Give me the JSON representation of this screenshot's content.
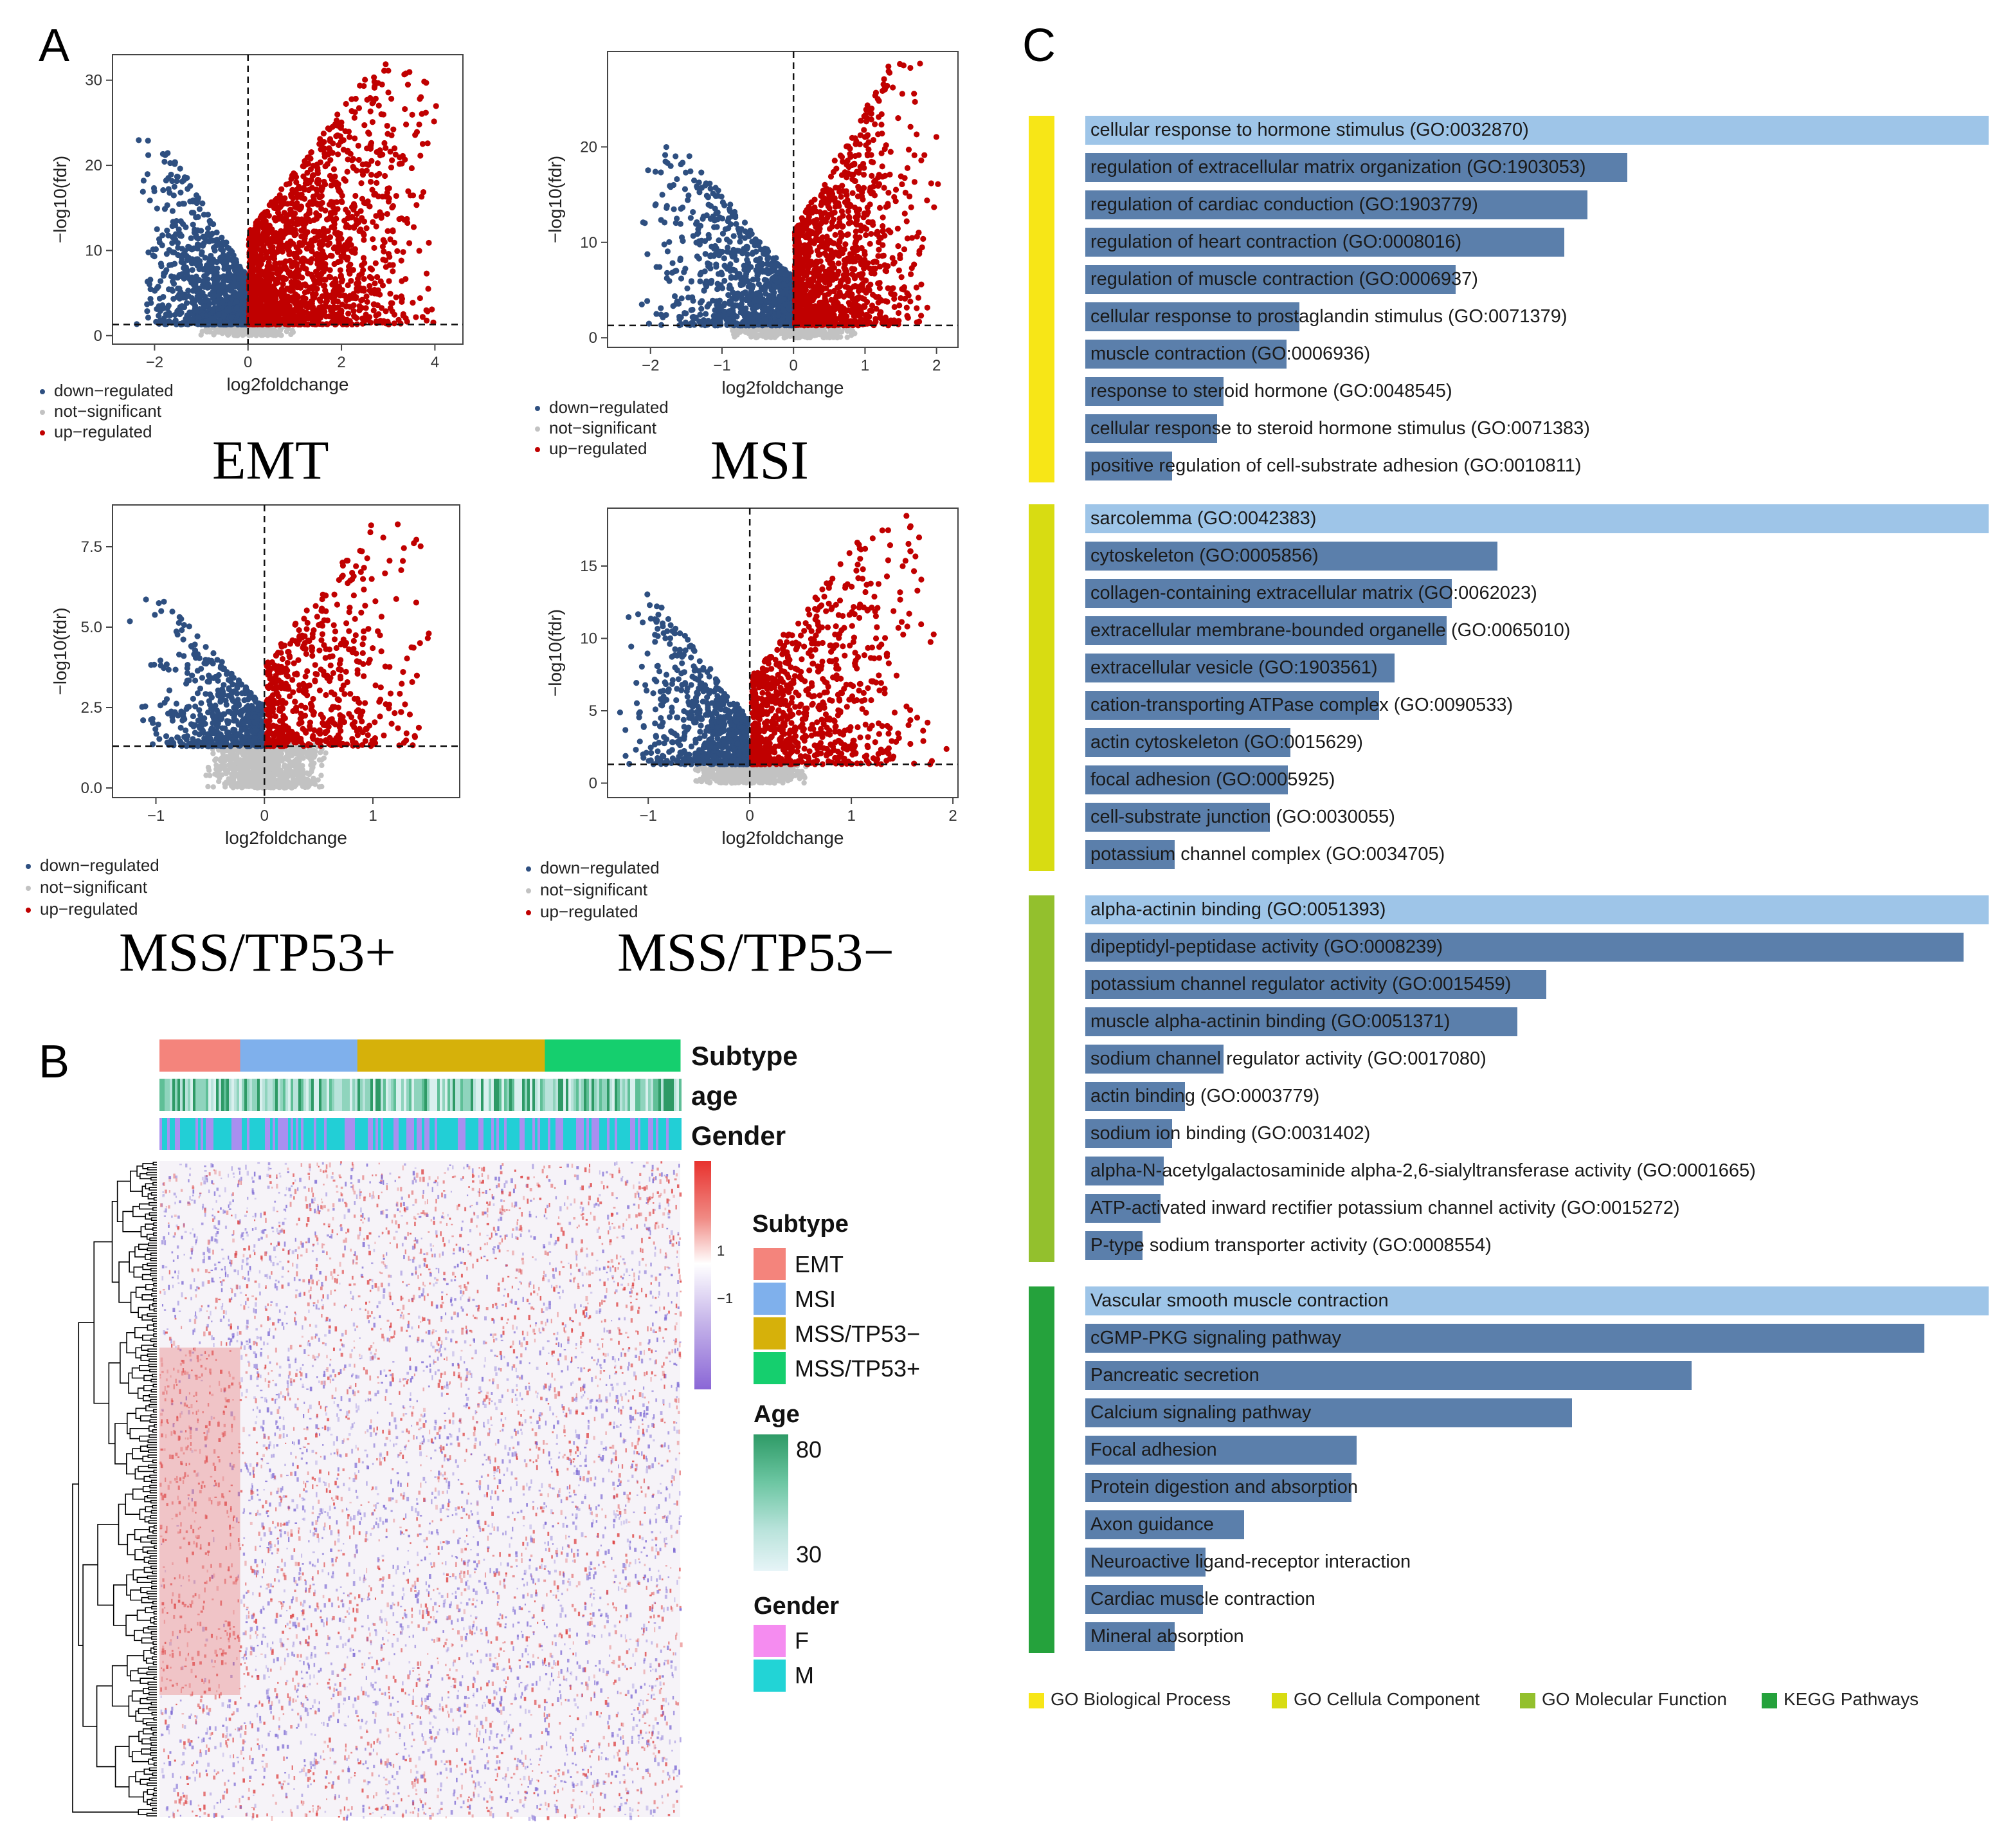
{
  "panels": {
    "a": "A",
    "b": "B",
    "c": "C"
  },
  "colors": {
    "down": "#2e4f80",
    "notsig": "#c2c2c2",
    "up": "#c00000",
    "bar_light": "#9ec5e8",
    "bar_dark": "#5b7fab",
    "bp": "#f7e617",
    "cc": "#d8dc12",
    "mf": "#93c02d",
    "kegg": "#25a23c"
  },
  "volcano_legend": [
    "down−regulated",
    "not−significant",
    "up−regulated"
  ],
  "volcanoes": [
    {
      "title": "EMT",
      "xlabel": "log2foldchange",
      "ylabel": "−log10(fdr)",
      "xlim": [
        -2.9,
        4.6
      ],
      "ylim": [
        -1,
        33
      ],
      "xticks": [
        -2,
        0,
        2,
        4
      ],
      "yticks": [
        0,
        10,
        20,
        30
      ],
      "xticklabels": [
        "−2",
        "0",
        "2",
        "4"
      ],
      "yticklabels": [
        "0",
        "10",
        "20",
        "30"
      ],
      "hline": 1.3,
      "down_n": 950,
      "up_n": 1700,
      "ns_n": 300,
      "down_xmin": -2.4,
      "up_xmax": 4.2,
      "ymax": 32,
      "seed": 11
    },
    {
      "title": "MSI",
      "xlabel": "log2foldchange",
      "ylabel": "−log10(fdr)",
      "xlim": [
        -2.6,
        2.3
      ],
      "ylim": [
        -1,
        30
      ],
      "xticks": [
        -2,
        -1,
        0,
        1,
        2
      ],
      "yticks": [
        0,
        10,
        20
      ],
      "xticklabels": [
        "−2",
        "−1",
        "0",
        "1",
        "2"
      ],
      "yticklabels": [
        "0",
        "10",
        "20"
      ],
      "hline": 1.3,
      "down_n": 1000,
      "up_n": 1200,
      "ns_n": 350,
      "down_xmin": -2.2,
      "up_xmax": 2.1,
      "ymax": 29,
      "seed": 23
    },
    {
      "title": "MSS/TP53+",
      "xlabel": "log2foldchange",
      "ylabel": "−log10(fdr)",
      "xlim": [
        -1.4,
        1.8
      ],
      "ylim": [
        -0.3,
        8.8
      ],
      "xticks": [
        -1,
        0,
        1
      ],
      "yticks": [
        0,
        2.5,
        5,
        7.5
      ],
      "xticklabels": [
        "−1",
        "0",
        "1"
      ],
      "yticklabels": [
        "0.0",
        "2.5",
        "5.0",
        "7.5"
      ],
      "hline": 1.3,
      "down_n": 550,
      "up_n": 550,
      "ns_n": 800,
      "down_xmin": -1.3,
      "up_xmax": 1.6,
      "ymax": 8.5,
      "seed": 37
    },
    {
      "title": "MSS/TP53−",
      "xlabel": "log2foldchange",
      "ylabel": "−log10(fdr)",
      "xlim": [
        -1.4,
        2.05
      ],
      "ylim": [
        -1,
        19
      ],
      "xticks": [
        -1,
        0,
        1,
        2
      ],
      "yticks": [
        0,
        5,
        10,
        15
      ],
      "xticklabels": [
        "−1",
        "0",
        "1",
        "2"
      ],
      "yticklabels": [
        "0",
        "5",
        "10",
        "15"
      ],
      "hline": 1.3,
      "down_n": 700,
      "up_n": 850,
      "ns_n": 600,
      "down_xmin": -1.3,
      "up_xmax": 1.95,
      "ymax": 18.5,
      "seed": 51
    }
  ],
  "heatmap": {
    "annotations": [
      "Subtype",
      "age",
      "Gender"
    ],
    "subtype_colors": [
      "#f4847c",
      "#7fb0ec",
      "#d6b10a",
      "#15cf6e"
    ],
    "subtype_fractions": [
      0.155,
      0.225,
      0.36,
      0.26
    ],
    "scale_labels": [
      "1",
      "−1"
    ],
    "legend": {
      "subtype_title": "Subtype",
      "subtypes": [
        "EMT",
        "MSI",
        "MSS/TP53−",
        "MSS/TP53+"
      ],
      "age_title": "Age",
      "age_labels": [
        "80",
        "30"
      ],
      "gender_title": "Gender",
      "genders": [
        "F",
        "M"
      ],
      "gender_colors": [
        "#f58cf0",
        "#22d4d6"
      ]
    }
  },
  "chart_data": {
    "type": "bar",
    "title": "",
    "orientation": "horizontal",
    "note": "Relative enrichment bar length (longest term in each category = 1.0)",
    "categories_legend": [
      "GO Biological Process",
      "GO Cellula Component",
      "GO Molecular Function",
      "KEGG Pathways"
    ],
    "groups": [
      {
        "name": "GO Biological Process",
        "terms": [
          {
            "label": "cellular response to hormone stimulus (GO:0032870)",
            "value": 1.0
          },
          {
            "label": "regulation of extracellular matrix organization (GO:1903053)",
            "value": 0.6
          },
          {
            "label": "regulation of cardiac conduction (GO:1903779)",
            "value": 0.556
          },
          {
            "label": "regulation of heart contraction (GO:0008016)",
            "value": 0.53
          },
          {
            "label": "regulation of muscle contraction (GO:0006937)",
            "value": 0.41
          },
          {
            "label": "cellular response to prostaglandin stimulus (GO:0071379)",
            "value": 0.237
          },
          {
            "label": "muscle contraction (GO:0006936)",
            "value": 0.223
          },
          {
            "label": "response to steroid hormone (GO:0048545)",
            "value": 0.153
          },
          {
            "label": "cellular response to steroid hormone stimulus (GO:0071383)",
            "value": 0.146
          },
          {
            "label": "positive regulation of cell-substrate adhesion (GO:0010811)",
            "value": 0.096
          }
        ]
      },
      {
        "name": "GO Cellula Component",
        "terms": [
          {
            "label": "sarcolemma (GO:0042383)",
            "value": 1.0
          },
          {
            "label": "cytoskeleton (GO:0005856)",
            "value": 0.456
          },
          {
            "label": "collagen-containing extracellular matrix (GO:0062023)",
            "value": 0.406
          },
          {
            "label": "extracellular membrane-bounded organelle (GO:0065010)",
            "value": 0.4
          },
          {
            "label": "extracellular vesicle (GO:1903561)",
            "value": 0.342
          },
          {
            "label": "cation-transporting ATPase complex (GO:0090533)",
            "value": 0.325
          },
          {
            "label": "actin cytoskeleton (GO:0015629)",
            "value": 0.227
          },
          {
            "label": "focal adhesion (GO:0005925)",
            "value": 0.224
          },
          {
            "label": "cell-substrate junction (GO:0030055)",
            "value": 0.204
          },
          {
            "label": "potassium channel complex (GO:0034705)",
            "value": 0.099
          }
        ]
      },
      {
        "name": "GO Molecular Function",
        "terms": [
          {
            "label": "alpha-actinin binding (GO:0051393)",
            "value": 1.0
          },
          {
            "label": "dipeptidyl-peptidase activity (GO:0008239)",
            "value": 0.972
          },
          {
            "label": "potassium channel regulator activity (GO:0015459)",
            "value": 0.51
          },
          {
            "label": "muscle alpha-actinin binding (GO:0051371)",
            "value": 0.478
          },
          {
            "label": "sodium channel regulator activity (GO:0017080)",
            "value": 0.153
          },
          {
            "label": "actin binding (GO:0003779)",
            "value": 0.11
          },
          {
            "label": "sodium ion binding (GO:0031402)",
            "value": 0.096
          },
          {
            "label": "alpha-N-acetylgalactosaminide alpha-2,6-sialyltransferase activity (GO:0001665)",
            "value": 0.087
          },
          {
            "label": "ATP-activated inward rectifier potassium channel activity (GO:0015272)",
            "value": 0.083
          },
          {
            "label": "P-type sodium transporter activity (GO:0008554)",
            "value": 0.063
          }
        ]
      },
      {
        "name": "KEGG Pathways",
        "terms": [
          {
            "label": "Vascular smooth muscle contraction",
            "value": 1.0
          },
          {
            "label": "cGMP-PKG signaling pathway",
            "value": 0.929
          },
          {
            "label": "Pancreatic secretion",
            "value": 0.671
          },
          {
            "label": "Calcium signaling pathway",
            "value": 0.539
          },
          {
            "label": "Focal adhesion",
            "value": 0.3
          },
          {
            "label": "Protein digestion and absorption",
            "value": 0.295
          },
          {
            "label": "Axon guidance",
            "value": 0.176
          },
          {
            "label": "Neuroactive ligand-receptor interaction",
            "value": 0.133
          },
          {
            "label": "Cardiac muscle contraction",
            "value": 0.13
          },
          {
            "label": "Mineral absorption",
            "value": 0.099
          }
        ]
      }
    ]
  }
}
